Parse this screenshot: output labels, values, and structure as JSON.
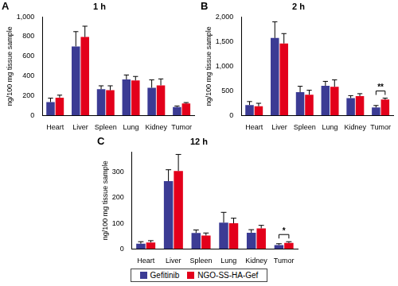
{
  "chart_data": [
    {
      "type": "bar",
      "panel": "A",
      "title": "1 h",
      "y_label": "ng/100 mg tissue sample",
      "categories": [
        "Heart",
        "Liver",
        "Spleen",
        "Lung",
        "Kidney",
        "Tumor"
      ],
      "ylim": [
        0,
        1000
      ],
      "yticks": [
        0,
        200,
        400,
        600,
        800,
        {
          "value": 1000,
          "label": "1,000"
        }
      ],
      "grid": false,
      "series": [
        {
          "name": "Gefitinib",
          "color": "#3b3b94",
          "values": [
            135,
            700,
            265,
            365,
            280,
            85
          ],
          "errors": [
            40,
            150,
            35,
            45,
            80,
            10
          ]
        },
        {
          "name": "NGO-SS-HA-Gef",
          "color": "#e3001b",
          "values": [
            180,
            795,
            255,
            355,
            305,
            120
          ],
          "errors": [
            25,
            110,
            45,
            40,
            65,
            10
          ]
        }
      ]
    },
    {
      "type": "bar",
      "panel": "B",
      "title": "2 h",
      "y_label": "ng/100 mg tissue sample",
      "categories": [
        "Heart",
        "Liver",
        "Spleen",
        "Lung",
        "Kidney",
        "Tumor"
      ],
      "ylim": [
        0,
        2000
      ],
      "yticks": [
        0,
        500,
        {
          "value": 1000,
          "label": "1,000"
        },
        {
          "value": 1500,
          "label": "1,500"
        },
        {
          "value": 2000,
          "label": "2,000"
        }
      ],
      "grid": false,
      "series": [
        {
          "name": "Gefitinib",
          "color": "#3b3b94",
          "values": [
            210,
            1570,
            470,
            600,
            350,
            160
          ],
          "errors": [
            70,
            330,
            120,
            90,
            50,
            40
          ]
        },
        {
          "name": "NGO-SS-HA-Gef",
          "color": "#e3001b",
          "values": [
            185,
            1460,
            420,
            580,
            390,
            320
          ],
          "errors": [
            60,
            200,
            90,
            140,
            50,
            30
          ]
        }
      ],
      "annotations": [
        {
          "category": "Tumor",
          "text": "**"
        }
      ]
    },
    {
      "type": "bar",
      "panel": "C",
      "title": "12 h",
      "y_label": "ng/100 mg tissue sample",
      "categories": [
        "Heart",
        "Liver",
        "Spleen",
        "Lung",
        "Kidney",
        "Tumor"
      ],
      "ylim": [
        0,
        380
      ],
      "yticks": [
        0,
        100,
        200,
        300
      ],
      "grid": false,
      "legend": "bottom",
      "series": [
        {
          "name": "Gefitinib",
          "color": "#3b3b94",
          "values": [
            20,
            265,
            62,
            103,
            63,
            15
          ],
          "errors": [
            8,
            45,
            12,
            40,
            12,
            5
          ]
        },
        {
          "name": "NGO-SS-HA-Gef",
          "color": "#e3001b",
          "values": [
            25,
            305,
            52,
            100,
            80,
            23
          ],
          "errors": [
            7,
            65,
            10,
            20,
            12,
            5
          ]
        }
      ],
      "annotations": [
        {
          "category": "Tumor",
          "text": "*"
        }
      ]
    }
  ]
}
